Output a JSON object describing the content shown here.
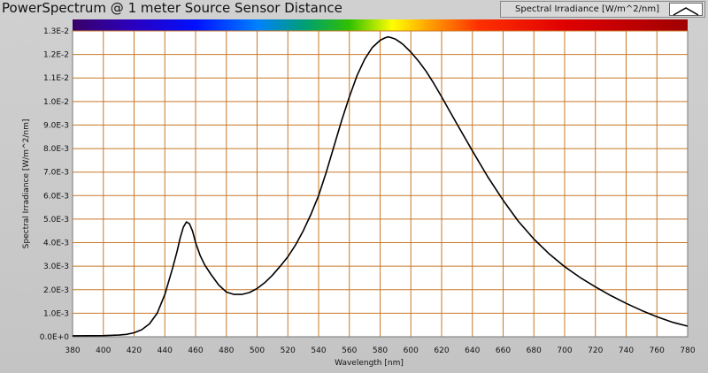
{
  "window": {
    "title": "PowerSpectrum @ 1 meter Source Sensor Distance",
    "legend_label": "Spectral Irradiance [W/m^2/nm]",
    "legend_icon": "line-plot-icon"
  },
  "colors": {
    "background": "#c9c9c9",
    "plot_area": "#ffffff",
    "grid": "#c87828",
    "series_line": "#000000",
    "spectrum_bar": [
      "#3a0068",
      "#0000ff",
      "#0090ff",
      "#00a000",
      "#ffff00",
      "#ff8000",
      "#ff0000",
      "#a00000"
    ]
  },
  "chart_data": {
    "type": "line",
    "title": "PowerSpectrum @ 1 meter Source Sensor Distance",
    "xlabel": "Wavelength [nm]",
    "ylabel": "Spectral Irradiance [W/m^2/nm]",
    "xlim": [
      380,
      780
    ],
    "ylim": [
      0,
      0.013
    ],
    "grid": true,
    "legend_position": "top-right",
    "x_ticks": [
      "380",
      "400",
      "420",
      "440",
      "460",
      "480",
      "500",
      "520",
      "540",
      "560",
      "580",
      "600",
      "620",
      "640",
      "660",
      "680",
      "700",
      "720",
      "740",
      "760",
      "780"
    ],
    "y_ticks": [
      "0.0E+0",
      "1.0E-3",
      "2.0E-3",
      "3.0E-3",
      "4.0E-3",
      "5.0E-3",
      "6.0E-3",
      "7.0E-3",
      "8.0E-3",
      "9.0E-3",
      "1.0E-2",
      "1.1E-2",
      "1.2E-2",
      "1.3E-2"
    ],
    "series": [
      {
        "name": "Spectral Irradiance [W/m^2/nm]",
        "x": [
          380,
          400,
          410,
          415,
          420,
          425,
          430,
          435,
          440,
          445,
          448,
          450,
          452,
          454,
          456,
          458,
          460,
          463,
          466,
          470,
          475,
          480,
          485,
          490,
          495,
          500,
          505,
          510,
          515,
          520,
          525,
          530,
          535,
          540,
          545,
          550,
          555,
          560,
          565,
          570,
          575,
          580,
          583,
          585,
          587,
          590,
          593,
          595,
          600,
          605,
          610,
          615,
          620,
          625,
          630,
          640,
          650,
          660,
          670,
          680,
          690,
          700,
          710,
          720,
          730,
          740,
          750,
          760,
          770,
          780
        ],
        "y": [
          4e-05,
          5e-05,
          7e-05,
          0.0001,
          0.00017,
          0.0003,
          0.00055,
          0.001,
          0.0018,
          0.0029,
          0.00365,
          0.0042,
          0.00465,
          0.00488,
          0.0048,
          0.0045,
          0.004,
          0.00345,
          0.00305,
          0.00265,
          0.0022,
          0.0019,
          0.0018,
          0.0018,
          0.00188,
          0.00205,
          0.0023,
          0.00262,
          0.003,
          0.0034,
          0.0039,
          0.0045,
          0.0052,
          0.006,
          0.007,
          0.0081,
          0.0092,
          0.0102,
          0.0111,
          0.0118,
          0.0123,
          0.0126,
          0.0127,
          0.01275,
          0.01272,
          0.01265,
          0.01252,
          0.01242,
          0.0121,
          0.01172,
          0.01128,
          0.01076,
          0.0102,
          0.00962,
          0.00904,
          0.0079,
          0.0068,
          0.0058,
          0.0049,
          0.00415,
          0.00352,
          0.00298,
          0.00252,
          0.00212,
          0.00175,
          0.00142,
          0.00112,
          0.00085,
          0.00062,
          0.00045
        ]
      }
    ]
  }
}
